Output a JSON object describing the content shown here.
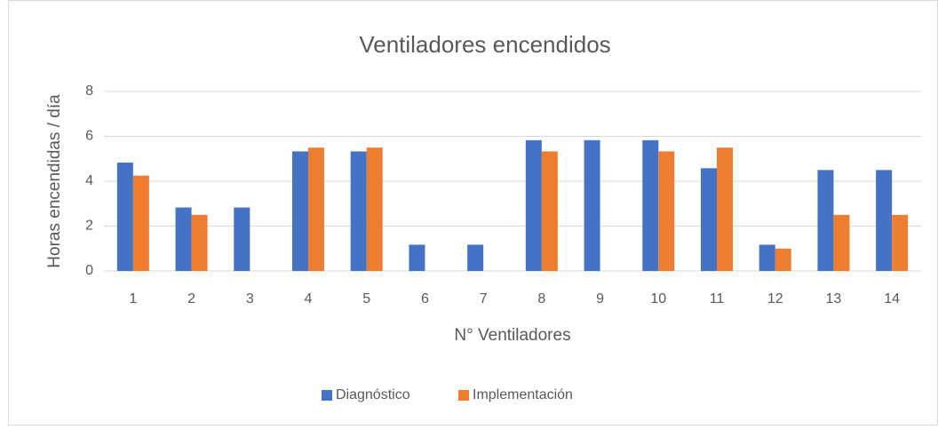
{
  "chart_data": {
    "type": "bar",
    "title": "Ventiladores encendidos",
    "x_label": "N° Ventiladores",
    "y_label": "Horas encendidas / día",
    "categories": [
      "1",
      "2",
      "3",
      "4",
      "5",
      "6",
      "7",
      "8",
      "9",
      "10",
      "11",
      "12",
      "13",
      "14"
    ],
    "series": [
      {
        "name": "Diagnóstico",
        "color": "#4472c4",
        "values": [
          4.83,
          2.83,
          2.83,
          5.33,
          5.33,
          1.17,
          1.17,
          5.83,
          5.83,
          5.83,
          4.58,
          1.17,
          4.5,
          4.5
        ]
      },
      {
        "name": "Implementación",
        "color": "#ed7d31",
        "values": [
          4.25,
          2.5,
          0,
          5.5,
          5.5,
          0,
          0,
          5.33,
          0,
          5.33,
          5.5,
          1,
          2.5,
          2.5
        ]
      }
    ],
    "ylim": [
      0,
      8
    ],
    "yticks": [
      0,
      2,
      4,
      6,
      8
    ],
    "grid": true,
    "legend": "bottom"
  }
}
